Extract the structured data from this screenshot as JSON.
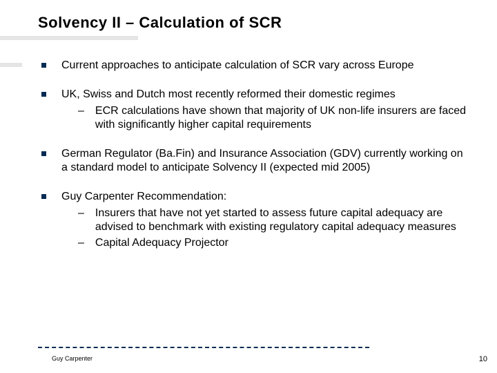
{
  "title": "Solvency II – Calculation of SCR",
  "colors": {
    "bullet": "#002b54",
    "underline": "#e5e5e5",
    "dashed": "#002b54",
    "text": "#000000",
    "background": "#ffffff"
  },
  "bullets": [
    {
      "text": "Current approaches to anticipate calculation of SCR vary across Europe",
      "subs": []
    },
    {
      "text": "UK, Swiss and Dutch most recently reformed their domestic regimes",
      "subs": [
        "ECR calculations have shown that majority of UK non-life insurers are faced with significantly higher capital requirements"
      ]
    },
    {
      "text": "German Regulator (Ba.Fin) and Insurance Association (GDV) currently working on a standard model to anticipate Solvency II (expected mid 2005)",
      "subs": []
    },
    {
      "text": "Guy Carpenter Recommendation:",
      "subs": [
        "Insurers that have not yet started to assess future capital adequacy are advised to benchmark with existing regulatory capital adequacy measures",
        "Capital Adequacy Projector"
      ]
    }
  ],
  "footer": {
    "author": "Guy Carpenter",
    "page": "10"
  }
}
